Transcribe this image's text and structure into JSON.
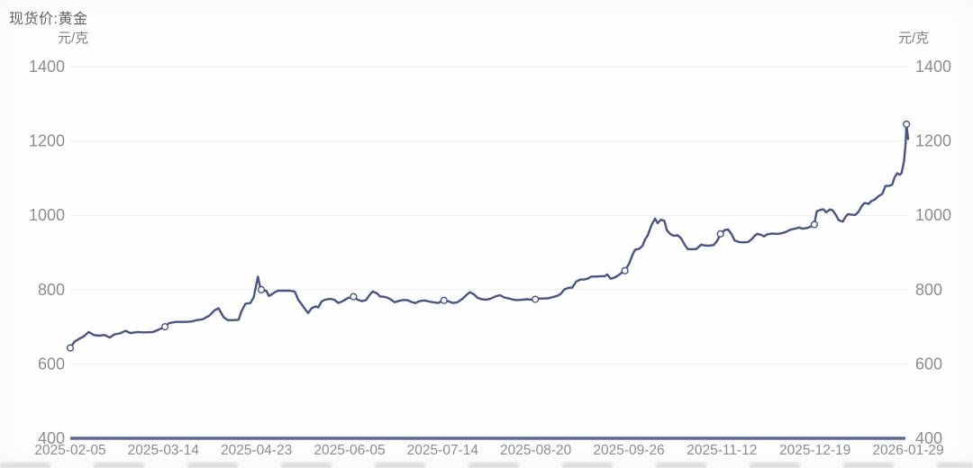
{
  "header": {
    "title": "现货价:黄金"
  },
  "chart": {
    "unit_left": "元/克",
    "unit_right": "元/克",
    "line_color": "#4b537f",
    "marker_fill": "#ffffff",
    "axis_bar_color": "#5a6b94",
    "grid_color": "#ededed",
    "tick_label_color": "#8c8c8c",
    "unit_label_color": "#7e7e7e",
    "title_color": "#5f5f5f"
  },
  "chart_data": {
    "type": "line",
    "title": "现货价:黄金",
    "xlabel": "",
    "ylabel": "元/克",
    "ylim": [
      400,
      1400
    ],
    "grid": "horizontal",
    "legend": "none",
    "y_ticks": [
      1400,
      1200,
      1000,
      800,
      600,
      400
    ],
    "x_tick_labels": [
      "2025-02-05",
      "2025-03-14",
      "2025-04-23",
      "2025-06-05",
      "2025-07-14",
      "2025-08-20",
      "2025-09-26",
      "2025-11-12",
      "2025-12-19",
      "2026-01-29"
    ],
    "markers_at_ticks": [
      {
        "date": "2025-02-05",
        "t": 0.0,
        "value": 643
      },
      {
        "date": "2025-03-14",
        "t": 0.113,
        "value": 700
      },
      {
        "date": "2025-04-23",
        "t": 0.228,
        "value": 800
      },
      {
        "date": "2025-06-05",
        "t": 0.338,
        "value": 781
      },
      {
        "date": "2025-07-14",
        "t": 0.446,
        "value": 771
      },
      {
        "date": "2025-08-20",
        "t": 0.555,
        "value": 774
      },
      {
        "date": "2025-09-26",
        "t": 0.662,
        "value": 851
      },
      {
        "date": "2025-11-12",
        "t": 0.776,
        "value": 950
      },
      {
        "date": "2025-12-19",
        "t": 0.888,
        "value": 975
      },
      {
        "date": "2026-01-29",
        "t": 0.998,
        "value": 1245
      }
    ],
    "series": [
      {
        "name": "现货价:黄金",
        "note": "t = fraction of time axis between 2025-02-05 and 2026-01-29, value in 元/克",
        "points": [
          [
            0.0,
            643
          ],
          [
            0.005,
            660
          ],
          [
            0.011,
            668
          ],
          [
            0.016,
            674
          ],
          [
            0.022,
            686
          ],
          [
            0.028,
            678
          ],
          [
            0.034,
            676
          ],
          [
            0.041,
            678
          ],
          [
            0.047,
            671
          ],
          [
            0.053,
            680
          ],
          [
            0.059,
            682
          ],
          [
            0.066,
            689
          ],
          [
            0.072,
            683
          ],
          [
            0.08,
            686
          ],
          [
            0.088,
            685
          ],
          [
            0.099,
            686
          ],
          [
            0.106,
            693
          ],
          [
            0.113,
            700
          ],
          [
            0.118,
            710
          ],
          [
            0.126,
            713
          ],
          [
            0.137,
            713
          ],
          [
            0.144,
            714
          ],
          [
            0.151,
            718
          ],
          [
            0.158,
            720
          ],
          [
            0.166,
            730
          ],
          [
            0.172,
            744
          ],
          [
            0.177,
            750
          ],
          [
            0.183,
            726
          ],
          [
            0.188,
            718
          ],
          [
            0.196,
            718
          ],
          [
            0.201,
            719
          ],
          [
            0.204,
            740
          ],
          [
            0.209,
            762
          ],
          [
            0.215,
            764
          ],
          [
            0.219,
            780
          ],
          [
            0.224,
            835
          ],
          [
            0.226,
            812
          ],
          [
            0.228,
            800
          ],
          [
            0.231,
            797
          ],
          [
            0.234,
            797
          ],
          [
            0.237,
            783
          ],
          [
            0.241,
            788
          ],
          [
            0.244,
            793
          ],
          [
            0.248,
            797
          ],
          [
            0.255,
            797
          ],
          [
            0.262,
            797
          ],
          [
            0.268,
            795
          ],
          [
            0.272,
            773
          ],
          [
            0.276,
            761
          ],
          [
            0.281,
            745
          ],
          [
            0.284,
            737
          ],
          [
            0.288,
            750
          ],
          [
            0.293,
            755
          ],
          [
            0.296,
            752
          ],
          [
            0.3,
            768
          ],
          [
            0.304,
            773
          ],
          [
            0.31,
            775
          ],
          [
            0.315,
            773
          ],
          [
            0.32,
            764
          ],
          [
            0.326,
            770
          ],
          [
            0.331,
            777
          ],
          [
            0.338,
            781
          ],
          [
            0.343,
            773
          ],
          [
            0.348,
            769
          ],
          [
            0.353,
            772
          ],
          [
            0.358,
            788
          ],
          [
            0.361,
            795
          ],
          [
            0.366,
            790
          ],
          [
            0.37,
            781
          ],
          [
            0.374,
            781
          ],
          [
            0.379,
            778
          ],
          [
            0.383,
            773
          ],
          [
            0.387,
            766
          ],
          [
            0.393,
            770
          ],
          [
            0.397,
            772
          ],
          [
            0.402,
            772
          ],
          [
            0.408,
            766
          ],
          [
            0.412,
            764
          ],
          [
            0.417,
            769
          ],
          [
            0.423,
            771
          ],
          [
            0.428,
            768
          ],
          [
            0.433,
            766
          ],
          [
            0.439,
            764
          ],
          [
            0.443,
            769
          ],
          [
            0.446,
            771
          ],
          [
            0.452,
            768
          ],
          [
            0.457,
            764
          ],
          [
            0.462,
            766
          ],
          [
            0.468,
            775
          ],
          [
            0.473,
            786
          ],
          [
            0.477,
            793
          ],
          [
            0.482,
            787
          ],
          [
            0.486,
            778
          ],
          [
            0.491,
            774
          ],
          [
            0.497,
            773
          ],
          [
            0.502,
            776
          ],
          [
            0.508,
            782
          ],
          [
            0.513,
            785
          ],
          [
            0.518,
            779
          ],
          [
            0.524,
            776
          ],
          [
            0.529,
            773
          ],
          [
            0.534,
            772
          ],
          [
            0.54,
            773
          ],
          [
            0.545,
            774
          ],
          [
            0.551,
            773
          ],
          [
            0.555,
            774
          ],
          [
            0.56,
            776
          ],
          [
            0.566,
            776
          ],
          [
            0.571,
            777
          ],
          [
            0.576,
            780
          ],
          [
            0.581,
            783
          ],
          [
            0.585,
            788
          ],
          [
            0.59,
            801
          ],
          [
            0.595,
            805
          ],
          [
            0.599,
            805
          ],
          [
            0.604,
            822
          ],
          [
            0.609,
            827
          ],
          [
            0.613,
            827
          ],
          [
            0.617,
            829
          ],
          [
            0.622,
            835
          ],
          [
            0.628,
            835
          ],
          [
            0.633,
            836
          ],
          [
            0.638,
            836
          ],
          [
            0.641,
            841
          ],
          [
            0.645,
            829
          ],
          [
            0.65,
            833
          ],
          [
            0.654,
            838
          ],
          [
            0.658,
            845
          ],
          [
            0.662,
            851
          ],
          [
            0.667,
            870
          ],
          [
            0.671,
            893
          ],
          [
            0.674,
            907
          ],
          [
            0.679,
            910
          ],
          [
            0.683,
            918
          ],
          [
            0.686,
            935
          ],
          [
            0.689,
            945
          ],
          [
            0.694,
            975
          ],
          [
            0.698,
            991
          ],
          [
            0.701,
            979
          ],
          [
            0.705,
            988
          ],
          [
            0.709,
            985
          ],
          [
            0.712,
            960
          ],
          [
            0.716,
            950
          ],
          [
            0.72,
            945
          ],
          [
            0.725,
            946
          ],
          [
            0.729,
            938
          ],
          [
            0.733,
            922
          ],
          [
            0.737,
            909
          ],
          [
            0.742,
            909
          ],
          [
            0.747,
            909
          ],
          [
            0.753,
            921
          ],
          [
            0.757,
            919
          ],
          [
            0.762,
            918
          ],
          [
            0.768,
            920
          ],
          [
            0.772,
            931
          ],
          [
            0.776,
            950
          ],
          [
            0.781,
            960
          ],
          [
            0.785,
            962
          ],
          [
            0.789,
            950
          ],
          [
            0.793,
            932
          ],
          [
            0.798,
            928
          ],
          [
            0.803,
            927
          ],
          [
            0.809,
            928
          ],
          [
            0.814,
            937
          ],
          [
            0.817,
            945
          ],
          [
            0.82,
            950
          ],
          [
            0.825,
            947
          ],
          [
            0.828,
            943
          ],
          [
            0.832,
            949
          ],
          [
            0.838,
            951
          ],
          [
            0.843,
            950
          ],
          [
            0.848,
            951
          ],
          [
            0.854,
            955
          ],
          [
            0.859,
            961
          ],
          [
            0.865,
            964
          ],
          [
            0.87,
            967
          ],
          [
            0.874,
            964
          ],
          [
            0.88,
            966
          ],
          [
            0.884,
            970
          ],
          [
            0.888,
            975
          ],
          [
            0.891,
            1011
          ],
          [
            0.896,
            1015
          ],
          [
            0.899,
            1016
          ],
          [
            0.902,
            1008
          ],
          [
            0.907,
            1016
          ],
          [
            0.91,
            1013
          ],
          [
            0.914,
            1000
          ],
          [
            0.917,
            987
          ],
          [
            0.922,
            983
          ],
          [
            0.925,
            995
          ],
          [
            0.928,
            1003
          ],
          [
            0.932,
            1002
          ],
          [
            0.937,
            1001
          ],
          [
            0.941,
            1010
          ],
          [
            0.945,
            1026
          ],
          [
            0.948,
            1033
          ],
          [
            0.953,
            1031
          ],
          [
            0.956,
            1038
          ],
          [
            0.96,
            1042
          ],
          [
            0.965,
            1052
          ],
          [
            0.969,
            1057
          ],
          [
            0.973,
            1079
          ],
          [
            0.977,
            1079
          ],
          [
            0.981,
            1082
          ],
          [
            0.984,
            1103
          ],
          [
            0.987,
            1113
          ],
          [
            0.99,
            1109
          ],
          [
            0.992,
            1113
          ],
          [
            0.995,
            1144
          ],
          [
            0.997,
            1193
          ],
          [
            0.998,
            1245
          ],
          [
            1.0,
            1205
          ]
        ]
      }
    ]
  }
}
